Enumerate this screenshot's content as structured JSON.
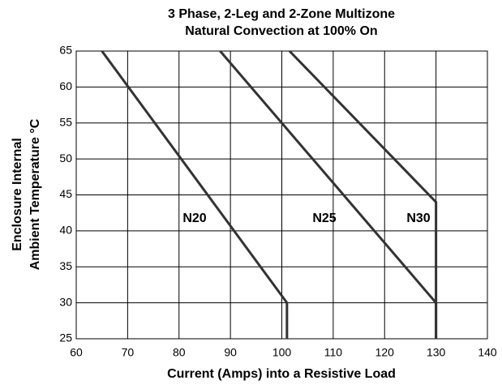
{
  "chart_data": {
    "type": "line",
    "title": [
      "3 Phase, 2-Leg and 2-Zone Multizone",
      "Natural Convection at 100% On"
    ],
    "xlabel": "Current (Amps) into a Resistive Load",
    "ylabel": [
      "Enclosure Internal",
      "Ambient Temperature °C"
    ],
    "series": [
      {
        "name": "N20",
        "color": "#333333",
        "x": [
          65,
          101,
          101
        ],
        "values": [
          65,
          30,
          25
        ]
      },
      {
        "name": "N25",
        "color": "#333333",
        "x": [
          88,
          130,
          130
        ],
        "values": [
          65,
          30,
          25
        ]
      },
      {
        "name": "N30",
        "color": "#333333",
        "x": [
          101.5,
          130,
          130
        ],
        "values": [
          65,
          44,
          25
        ]
      }
    ],
    "xlim": [
      60,
      140
    ],
    "xticks": [
      60,
      70,
      80,
      90,
      100,
      110,
      120,
      130,
      140
    ],
    "ylim": [
      25,
      65
    ],
    "yticks": [
      25,
      30,
      35,
      40,
      45,
      50,
      55,
      60,
      65
    ],
    "grid": true
  }
}
